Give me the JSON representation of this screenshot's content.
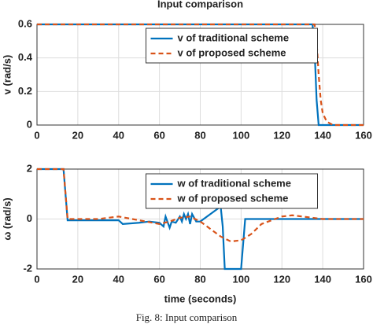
{
  "chart_data": [
    {
      "type": "line",
      "title": "Input comparison",
      "ylabel": "v (rad/s)",
      "xlim": [
        0,
        160
      ],
      "xticks": [
        0,
        20,
        40,
        60,
        80,
        100,
        120,
        140,
        160
      ],
      "ylim": [
        0,
        0.6
      ],
      "yticks": [
        0,
        0.2,
        0.4,
        0.6
      ],
      "grid": true,
      "legend": "upper center",
      "series": [
        {
          "name": "v of traditional scheme",
          "color": "#0072bd",
          "line_style": "solid",
          "x": [
            0,
            20,
            40,
            60,
            80,
            100,
            120,
            135,
            136,
            137,
            138,
            140,
            150,
            160
          ],
          "values": [
            0.6,
            0.6,
            0.6,
            0.6,
            0.6,
            0.6,
            0.6,
            0.6,
            0.45,
            0.15,
            0,
            0,
            0,
            0
          ]
        },
        {
          "name": "v of proposed scheme",
          "color": "#d95319",
          "line_style": "dashed",
          "x": [
            0,
            20,
            40,
            60,
            80,
            100,
            120,
            136,
            137,
            138,
            139,
            140,
            142,
            145,
            150,
            160
          ],
          "values": [
            0.6,
            0.6,
            0.6,
            0.6,
            0.6,
            0.6,
            0.6,
            0.6,
            0.5,
            0.3,
            0.15,
            0.07,
            0.02,
            0,
            0,
            0
          ]
        }
      ]
    },
    {
      "type": "line",
      "xlabel": "time (seconds)",
      "ylabel": "ω (rad/s)",
      "xlim": [
        0,
        160
      ],
      "xticks": [
        0,
        20,
        40,
        60,
        80,
        100,
        120,
        140,
        160
      ],
      "ylim": [
        -2,
        2
      ],
      "yticks": [
        -2,
        0,
        2
      ],
      "grid": true,
      "legend": "upper center",
      "series": [
        {
          "name": "w of traditional scheme",
          "color": "#0072bd",
          "line_style": "solid",
          "x": [
            0,
            13,
            15,
            20,
            40,
            42,
            50,
            55,
            60,
            62,
            63,
            65,
            66,
            68,
            70,
            71,
            72,
            73,
            74,
            75,
            76,
            78,
            80,
            85,
            90,
            91,
            92,
            96,
            100,
            101,
            102,
            160
          ],
          "values": [
            2,
            2,
            -0.05,
            -0.05,
            -0.05,
            -0.2,
            -0.15,
            -0.1,
            -0.15,
            -0.3,
            0.1,
            -0.35,
            -0.1,
            -0.15,
            0.1,
            -0.1,
            0.2,
            0,
            0.2,
            -0.2,
            0.2,
            -0.1,
            -0.1,
            0.2,
            0.5,
            -0.3,
            -2,
            -2,
            -2,
            -1,
            0,
            0
          ]
        },
        {
          "name": "w of proposed scheme",
          "color": "#d95319",
          "line_style": "dashed",
          "x": [
            0,
            13,
            15,
            30,
            40,
            50,
            60,
            65,
            70,
            75,
            80,
            85,
            90,
            95,
            100,
            105,
            110,
            120,
            125,
            130,
            140,
            150,
            160
          ],
          "values": [
            2,
            2,
            0,
            0,
            0.1,
            -0.05,
            -0.2,
            -0.1,
            0.05,
            0.1,
            -0.1,
            -0.4,
            -0.7,
            -0.9,
            -0.85,
            -0.6,
            -0.2,
            0.1,
            0.15,
            0.1,
            0,
            0,
            0
          ]
        }
      ]
    }
  ],
  "caption": "Fig. 8: Input comparison"
}
